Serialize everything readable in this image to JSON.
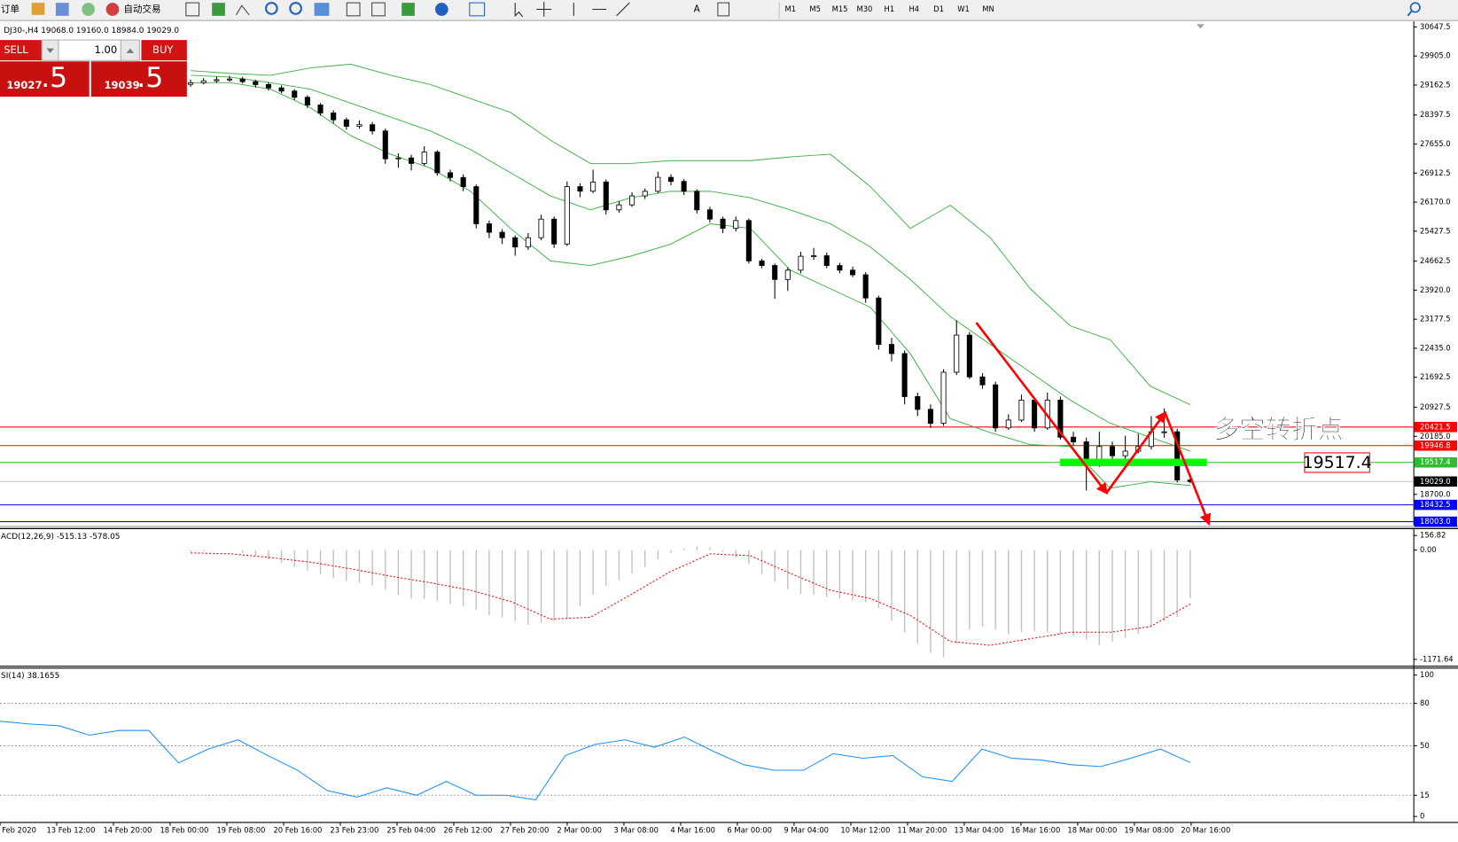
{
  "toolbar": {
    "orders": "订单",
    "auto_trading": "自动交易",
    "text_tool": "A",
    "timeframes": [
      "M1",
      "M5",
      "M15",
      "M30",
      "H1",
      "H4",
      "D1",
      "W1",
      "MN"
    ]
  },
  "trade_panel": {
    "sell": "SELL",
    "lots": "1.00",
    "buy": "BUY",
    "bid_main": "19027",
    "bid_frac": ".5",
    "ask_main": "19039",
    "ask_frac": ".5"
  },
  "chart_data": [
    {
      "type": "candlestick",
      "title": "DJ30-,H4 19068.0 19160.0 18984.0 19029.0",
      "up_color": "#ffffff",
      "down_color": "#000000",
      "ylim": [
        17908,
        30766
      ],
      "yticks": [
        {
          "value": 30647.5,
          "label": "30647.5"
        },
        {
          "value": 29905.0,
          "label": "29905.0"
        },
        {
          "value": 29162.5,
          "label": "29162.5"
        },
        {
          "value": 28397.5,
          "label": "28397.5"
        },
        {
          "value": 27655.0,
          "label": "27655.0"
        },
        {
          "value": 26912.5,
          "label": "26912.5"
        },
        {
          "value": 26170.0,
          "label": "26170.0"
        },
        {
          "value": 25427.5,
          "label": "25427.5"
        },
        {
          "value": 24662.5,
          "label": "24662.5"
        },
        {
          "value": 23920.0,
          "label": "23920.0"
        },
        {
          "value": 23177.5,
          "label": "23177.5"
        },
        {
          "value": 22435.0,
          "label": "22435.0"
        },
        {
          "value": 21692.5,
          "label": "21692.5"
        },
        {
          "value": 20927.5,
          "label": "20927.5"
        },
        {
          "value": 20185.0,
          "label": "20185.0"
        },
        {
          "value": 18700.0,
          "label": "18700.0"
        }
      ],
      "hlines": [
        {
          "value": 20421.5,
          "label": "20421.5",
          "color": "#ff0000",
          "label_color": "#ff0000"
        },
        {
          "value": 19946.8,
          "label": "19946.8",
          "color": "#ff0000",
          "label_color": "#ff0000"
        },
        {
          "value": 19517.4,
          "label": "19517.4",
          "color": "#2ebd2e",
          "label_color": "#2ebd2e"
        },
        {
          "value": 19029.0,
          "label": "19029.0",
          "color": "#c0c0c0",
          "label_color": "#000000"
        },
        {
          "value": 18432.5,
          "label": "18432.5",
          "color": "#0000ff",
          "label_color": "#0000ff"
        },
        {
          "value": 18003.0,
          "label": "18003.0",
          "color": "#0000ff",
          "label_color": "#0000ff"
        }
      ],
      "annotations": [
        {
          "text": "多空转折点",
          "color": "#22bb22"
        },
        {
          "text": "19517.4",
          "color": "#ff0000"
        }
      ],
      "bands": {
        "color": "#3cb043",
        "upper": [
          29531,
          29460,
          29412,
          29602,
          29697,
          29412,
          29175,
          28819,
          28464,
          27752,
          27159,
          27159,
          27230,
          27230,
          27230,
          27325,
          27396,
          26566,
          25499,
          26092,
          25261,
          23957,
          23008,
          22652,
          21466,
          20992
        ],
        "middle": [
          29412,
          29365,
          29223,
          29056,
          28701,
          28345,
          27989,
          27515,
          26922,
          26329,
          25973,
          26281,
          26447,
          26447,
          26281,
          25973,
          25617,
          25024,
          24194,
          23245,
          22534,
          21822,
          21110,
          20517,
          20162,
          19806
        ],
        "lower": [
          29223,
          29223,
          29056,
          28582,
          27871,
          27396,
          27040,
          26447,
          25499,
          24668,
          24550,
          24787,
          25095,
          25617,
          25499,
          24431,
          23957,
          23482,
          22296,
          20636,
          20280,
          19972,
          19924,
          18857,
          19023,
          18928
        ]
      },
      "ohlc": [
        [
          29180,
          29300,
          29120,
          29223
        ],
        [
          29223,
          29340,
          29180,
          29270
        ],
        [
          29270,
          29380,
          29220,
          29300
        ],
        [
          29300,
          29400,
          29250,
          29317
        ],
        [
          29317,
          29370,
          29200,
          29250
        ],
        [
          29250,
          29300,
          29100,
          29175
        ],
        [
          29175,
          29230,
          29020,
          29090
        ],
        [
          29090,
          29150,
          28950,
          29009
        ],
        [
          29009,
          29060,
          28780,
          28850
        ],
        [
          28850,
          28900,
          28580,
          28653
        ],
        [
          28653,
          28700,
          28380,
          28450
        ],
        [
          28450,
          28520,
          28180,
          28274
        ],
        [
          28274,
          28330,
          28020,
          28108
        ],
        [
          28108,
          28260,
          28050,
          28150
        ],
        [
          28150,
          28220,
          27900,
          27989
        ],
        [
          27989,
          28050,
          27150,
          27278
        ],
        [
          27278,
          27420,
          27050,
          27300
        ],
        [
          27300,
          27380,
          26980,
          27159
        ],
        [
          27159,
          27600,
          27100,
          27450
        ],
        [
          27450,
          27500,
          26850,
          26922
        ],
        [
          26922,
          27000,
          26700,
          26800
        ],
        [
          26800,
          26880,
          26450,
          26566
        ],
        [
          26566,
          26620,
          25500,
          25617
        ],
        [
          25617,
          25700,
          25250,
          25400
        ],
        [
          25400,
          25480,
          25100,
          25261
        ],
        [
          25261,
          25320,
          24800,
          25024
        ],
        [
          25024,
          25380,
          24950,
          25261
        ],
        [
          25261,
          25850,
          25200,
          25736
        ],
        [
          25736,
          25800,
          25000,
          25100
        ],
        [
          25100,
          26700,
          25050,
          26566
        ],
        [
          26566,
          26650,
          26300,
          26450
        ],
        [
          26450,
          27000,
          26400,
          26685
        ],
        [
          26685,
          26750,
          25850,
          25973
        ],
        [
          25973,
          26200,
          25900,
          26100
        ],
        [
          26100,
          26420,
          26050,
          26329
        ],
        [
          26329,
          26520,
          26250,
          26447
        ],
        [
          26447,
          26950,
          26400,
          26803
        ],
        [
          26803,
          26880,
          26600,
          26700
        ],
        [
          26700,
          26760,
          26350,
          26447
        ],
        [
          26447,
          26500,
          25880,
          25973
        ],
        [
          25973,
          26050,
          25650,
          25736
        ],
        [
          25736,
          25800,
          25380,
          25500
        ],
        [
          25500,
          25800,
          25420,
          25700
        ],
        [
          25700,
          25750,
          24600,
          24668
        ],
        [
          24668,
          24720,
          24480,
          24550
        ],
        [
          24550,
          24600,
          23700,
          24194
        ],
        [
          24194,
          24500,
          23900,
          24431
        ],
        [
          24431,
          24900,
          24350,
          24787
        ],
        [
          24787,
          25000,
          24700,
          24800
        ],
        [
          24800,
          24880,
          24480,
          24550
        ],
        [
          24550,
          24620,
          24350,
          24431
        ],
        [
          24431,
          24520,
          24250,
          24313
        ],
        [
          24313,
          24380,
          23600,
          23720
        ],
        [
          23720,
          23780,
          22400,
          22534
        ],
        [
          22534,
          22700,
          22100,
          22300
        ],
        [
          22300,
          22380,
          21000,
          21200
        ],
        [
          21200,
          21300,
          20700,
          20873
        ],
        [
          20873,
          21000,
          20400,
          20517
        ],
        [
          20517,
          21900,
          20450,
          21822
        ],
        [
          21822,
          23150,
          21750,
          22771
        ],
        [
          22771,
          22850,
          21650,
          21703
        ],
        [
          21703,
          21800,
          21400,
          21500
        ],
        [
          21500,
          21580,
          20300,
          20399
        ],
        [
          20399,
          20750,
          20350,
          20600
        ],
        [
          20600,
          21250,
          20550,
          21110
        ],
        [
          21110,
          21180,
          20300,
          20399
        ],
        [
          20399,
          21300,
          20350,
          21110
        ],
        [
          21110,
          21200,
          20100,
          20162
        ],
        [
          20162,
          20300,
          19950,
          20043
        ],
        [
          20043,
          20150,
          18800,
          19450
        ],
        [
          19450,
          20300,
          19400,
          19924
        ],
        [
          19924,
          20050,
          19500,
          19687
        ],
        [
          19687,
          20200,
          19600,
          19806
        ],
        [
          19806,
          20250,
          19750,
          19924
        ],
        [
          19924,
          20700,
          19850,
          20300
        ],
        [
          20300,
          20900,
          20150,
          20300
        ],
        [
          20300,
          20380,
          19000,
          19068
        ],
        [
          19068,
          19160,
          18984,
          19029
        ]
      ]
    },
    {
      "type": "histogram",
      "title": "ACD(12,26,9) -515.13 -578.05",
      "color": "#c0c0c0",
      "signal_color": "#ff0000",
      "ylim": [
        -1240,
        225
      ],
      "yticks": [
        156.82,
        {
          "value": 0,
          "label": "0.00"
        },
        -1171.64
      ],
      "values": [
        -20,
        -10,
        0,
        -5,
        -30,
        -60,
        -100,
        -140,
        -180,
        -220,
        -260,
        -300,
        -330,
        -350,
        -380,
        -420,
        -480,
        -520,
        -520,
        -540,
        -580,
        -600,
        -640,
        -700,
        -720,
        -760,
        -800,
        -780,
        -760,
        -740,
        -600,
        -480,
        -380,
        -320,
        -250,
        -180,
        -100,
        -30,
        20,
        40,
        30,
        -20,
        -80,
        -150,
        -260,
        -340,
        -420,
        -470,
        -480,
        -500,
        -520,
        -540,
        -560,
        -620,
        -760,
        -880,
        -1000,
        -1100,
        -1150,
        -1000,
        -850,
        -820,
        -850,
        -900,
        -880,
        -870,
        -880,
        -900,
        -920,
        -960,
        -1020,
        -980,
        -940,
        -900,
        -820,
        -760,
        -720,
        -515.13
      ],
      "signal": [
        -30,
        -40,
        -80,
        -130,
        -200,
        -280,
        -350,
        -430,
        -550,
        -740,
        -720,
        -480,
        -230,
        -40,
        -60,
        -250,
        -430,
        -520,
        -700,
        -980,
        -1020,
        -950,
        -880,
        -880,
        -820,
        -578.05
      ]
    },
    {
      "type": "line",
      "title": "SI(14) 38.1655",
      "color": "#1e90ff",
      "ylim": [
        -3.9,
        104.6
      ],
      "yticks": [
        100,
        80,
        50,
        15,
        0
      ],
      "levels": [
        80,
        50,
        15
      ],
      "values": [
        67.3,
        65.4,
        64.1,
        57.5,
        60.8,
        60.8,
        37.9,
        47.7,
        54.2,
        43.1,
        32.7,
        18.3,
        13.7,
        20.3,
        15.0,
        24.8,
        15.0,
        15.0,
        11.8,
        43.1,
        51.0,
        54.2,
        49.0,
        56.2,
        45.8,
        36.6,
        32.7,
        32.7,
        44.4,
        41.2,
        43.1,
        28.1,
        24.8,
        47.7,
        41.2,
        39.9,
        36.6,
        35.3,
        41.2,
        47.7,
        38.1655
      ],
      "x_labels": [
        "Feb 2020",
        "13 Feb 12:00",
        "14 Feb 20:00",
        "18 Feb 00:00",
        "19 Feb 08:00",
        "20 Feb 16:00",
        "23 Feb 23:00",
        "25 Feb 04:00",
        "26 Feb 12:00",
        "27 Feb 20:00",
        "2 Mar 00:00",
        "3 Mar 08:00",
        "4 Mar 16:00",
        "6 Mar 00:00",
        "9 Mar 04:00",
        "10 Mar 12:00",
        "11 Mar 20:00",
        "13 Mar 04:00",
        "16 Mar 16:00",
        "18 Mar 00:00",
        "19 Mar 08:00",
        "20 Mar 16:00"
      ]
    }
  ]
}
